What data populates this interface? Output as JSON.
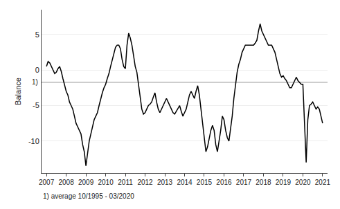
{
  "chart_data": {
    "type": "line",
    "ylabel": "Balance",
    "footnote": "1) average 10/1995 - 03/2020",
    "color": "#000000",
    "average": -1.73,
    "average_label": "1)",
    "xlim": [
      2006.75,
      2021.25
    ],
    "xticks": [
      2007,
      2008,
      2009,
      2010,
      2011,
      2012,
      2013,
      2014,
      2015,
      2016,
      2017,
      2018,
      2019,
      2020,
      2021
    ],
    "ylim": [
      -14.5,
      8.5
    ],
    "yticks": [
      5,
      0,
      -5,
      -10
    ],
    "grid": "y",
    "x": [
      2007.0,
      2007.083,
      2007.167,
      2007.25,
      2007.333,
      2007.417,
      2007.5,
      2007.583,
      2007.667,
      2007.75,
      2007.833,
      2007.917,
      2008.0,
      2008.083,
      2008.167,
      2008.25,
      2008.333,
      2008.417,
      2008.5,
      2008.583,
      2008.667,
      2008.75,
      2008.833,
      2008.917,
      2009.0,
      2009.083,
      2009.167,
      2009.25,
      2009.333,
      2009.417,
      2009.5,
      2009.583,
      2009.667,
      2009.75,
      2009.833,
      2009.917,
      2010.0,
      2010.083,
      2010.167,
      2010.25,
      2010.333,
      2010.417,
      2010.5,
      2010.583,
      2010.667,
      2010.75,
      2010.833,
      2010.917,
      2011.0,
      2011.083,
      2011.167,
      2011.25,
      2011.333,
      2011.417,
      2011.5,
      2011.583,
      2011.667,
      2011.75,
      2011.833,
      2011.917,
      2012.0,
      2012.083,
      2012.167,
      2012.25,
      2012.333,
      2012.417,
      2012.5,
      2012.583,
      2012.667,
      2012.75,
      2012.833,
      2012.917,
      2013.0,
      2013.083,
      2013.167,
      2013.25,
      2013.333,
      2013.417,
      2013.5,
      2013.583,
      2013.667,
      2013.75,
      2013.833,
      2013.917,
      2014.0,
      2014.083,
      2014.167,
      2014.25,
      2014.333,
      2014.417,
      2014.5,
      2014.583,
      2014.667,
      2014.75,
      2014.833,
      2014.917,
      2015.0,
      2015.083,
      2015.167,
      2015.25,
      2015.333,
      2015.417,
      2015.5,
      2015.583,
      2015.667,
      2015.75,
      2015.833,
      2015.917,
      2016.0,
      2016.083,
      2016.167,
      2016.25,
      2016.333,
      2016.417,
      2016.5,
      2016.583,
      2016.667,
      2016.75,
      2016.833,
      2016.917,
      2017.0,
      2017.083,
      2017.167,
      2017.25,
      2017.333,
      2017.417,
      2017.5,
      2017.583,
      2017.667,
      2017.75,
      2017.833,
      2017.917,
      2018.0,
      2018.083,
      2018.167,
      2018.25,
      2018.333,
      2018.417,
      2018.5,
      2018.583,
      2018.667,
      2018.75,
      2018.833,
      2018.917,
      2019.0,
      2019.083,
      2019.167,
      2019.25,
      2019.333,
      2019.417,
      2019.5,
      2019.583,
      2019.667,
      2019.75,
      2019.833,
      2019.917,
      2020.0,
      2020.083,
      2020.167,
      2020.25,
      2020.333,
      2020.417,
      2020.5,
      2020.583,
      2020.667,
      2020.75,
      2020.833,
      2020.917,
      2021.0
    ],
    "values": [
      0.5,
      1.2,
      1.0,
      0.5,
      0.0,
      -0.5,
      -0.3,
      0.2,
      0.5,
      -0.2,
      -1.2,
      -2.0,
      -3.0,
      -3.5,
      -4.5,
      -5.0,
      -5.5,
      -6.5,
      -7.5,
      -8.0,
      -8.5,
      -9.0,
      -10.5,
      -11.5,
      -13.5,
      -11.5,
      -10.0,
      -9.0,
      -8.0,
      -7.0,
      -6.5,
      -6.0,
      -5.0,
      -4.0,
      -3.2,
      -2.5,
      -2.0,
      -1.2,
      -0.5,
      0.5,
      1.5,
      2.5,
      3.2,
      3.5,
      3.5,
      3.0,
      1.5,
      0.5,
      0.2,
      3.5,
      5.2,
      4.5,
      3.5,
      2.0,
      0.5,
      -0.3,
      -2.0,
      -3.5,
      -5.5,
      -6.2,
      -6.0,
      -5.5,
      -5.0,
      -4.8,
      -4.5,
      -3.8,
      -3.2,
      -4.5,
      -5.5,
      -6.0,
      -5.5,
      -5.0,
      -4.5,
      -4.0,
      -4.5,
      -5.0,
      -5.5,
      -6.0,
      -6.2,
      -5.8,
      -5.5,
      -5.0,
      -5.8,
      -6.5,
      -6.0,
      -5.5,
      -4.5,
      -3.5,
      -3.0,
      -3.5,
      -4.0,
      -3.0,
      -2.2,
      -3.5,
      -5.5,
      -7.0,
      -9.0,
      -11.5,
      -10.8,
      -9.5,
      -8.5,
      -7.8,
      -8.5,
      -10.5,
      -11.5,
      -10.0,
      -8.5,
      -6.5,
      -7.0,
      -8.5,
      -9.5,
      -10.0,
      -8.5,
      -6.5,
      -4.0,
      -2.0,
      -0.3,
      0.8,
      1.5,
      2.5,
      3.0,
      3.5,
      3.5,
      3.5,
      3.5,
      3.5,
      3.5,
      3.8,
      4.2,
      5.5,
      6.5,
      5.5,
      5.0,
      4.5,
      4.0,
      3.5,
      3.5,
      3.5,
      3.0,
      2.5,
      1.5,
      0.5,
      -0.5,
      -1.0,
      -0.8,
      -1.2,
      -1.5,
      -2.0,
      -2.5,
      -2.5,
      -2.0,
      -1.5,
      -1.0,
      -1.5,
      -1.8,
      -2.0,
      -2.0,
      -7.5,
      -13.0,
      -7.0,
      -5.0,
      -4.8,
      -4.5,
      -5.0,
      -5.5,
      -5.2,
      -5.5,
      -6.5,
      -7.5
    ]
  }
}
